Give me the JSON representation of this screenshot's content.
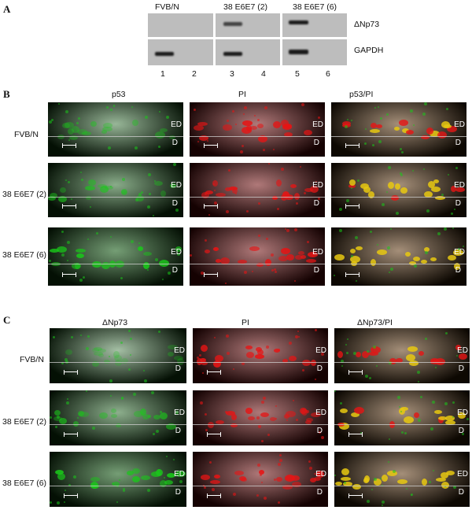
{
  "panels": [
    "A",
    "B",
    "C"
  ],
  "panel_a": {
    "lanes_groups": [
      "FVB/N",
      "38 E6E7 (2)",
      "38 E6E7 (6)"
    ],
    "row_labels": [
      "ΔNp73",
      "GAPDH"
    ],
    "lane_numbers": [
      "1",
      "2",
      "3",
      "4",
      "5",
      "6"
    ]
  },
  "panel_b": {
    "column_titles": [
      "p53",
      "PI",
      "p53/PI"
    ],
    "row_labels": [
      "FVB/N",
      "38 E6E7 (2)",
      "38 E6E7 (6)"
    ]
  },
  "panel_c": {
    "column_titles": [
      "ΔNp73",
      "PI",
      "ΔNp73/PI"
    ],
    "row_labels": [
      "FVB/N",
      "38 E6E7 (2)",
      "38 E6E7 (6)"
    ]
  },
  "image_labels": {
    "ed": "ED",
    "d": "D"
  },
  "colors": {
    "green": "#19c819",
    "red": "#e61414",
    "yellow": "#e8c810",
    "gel": "#bdbdbd"
  }
}
